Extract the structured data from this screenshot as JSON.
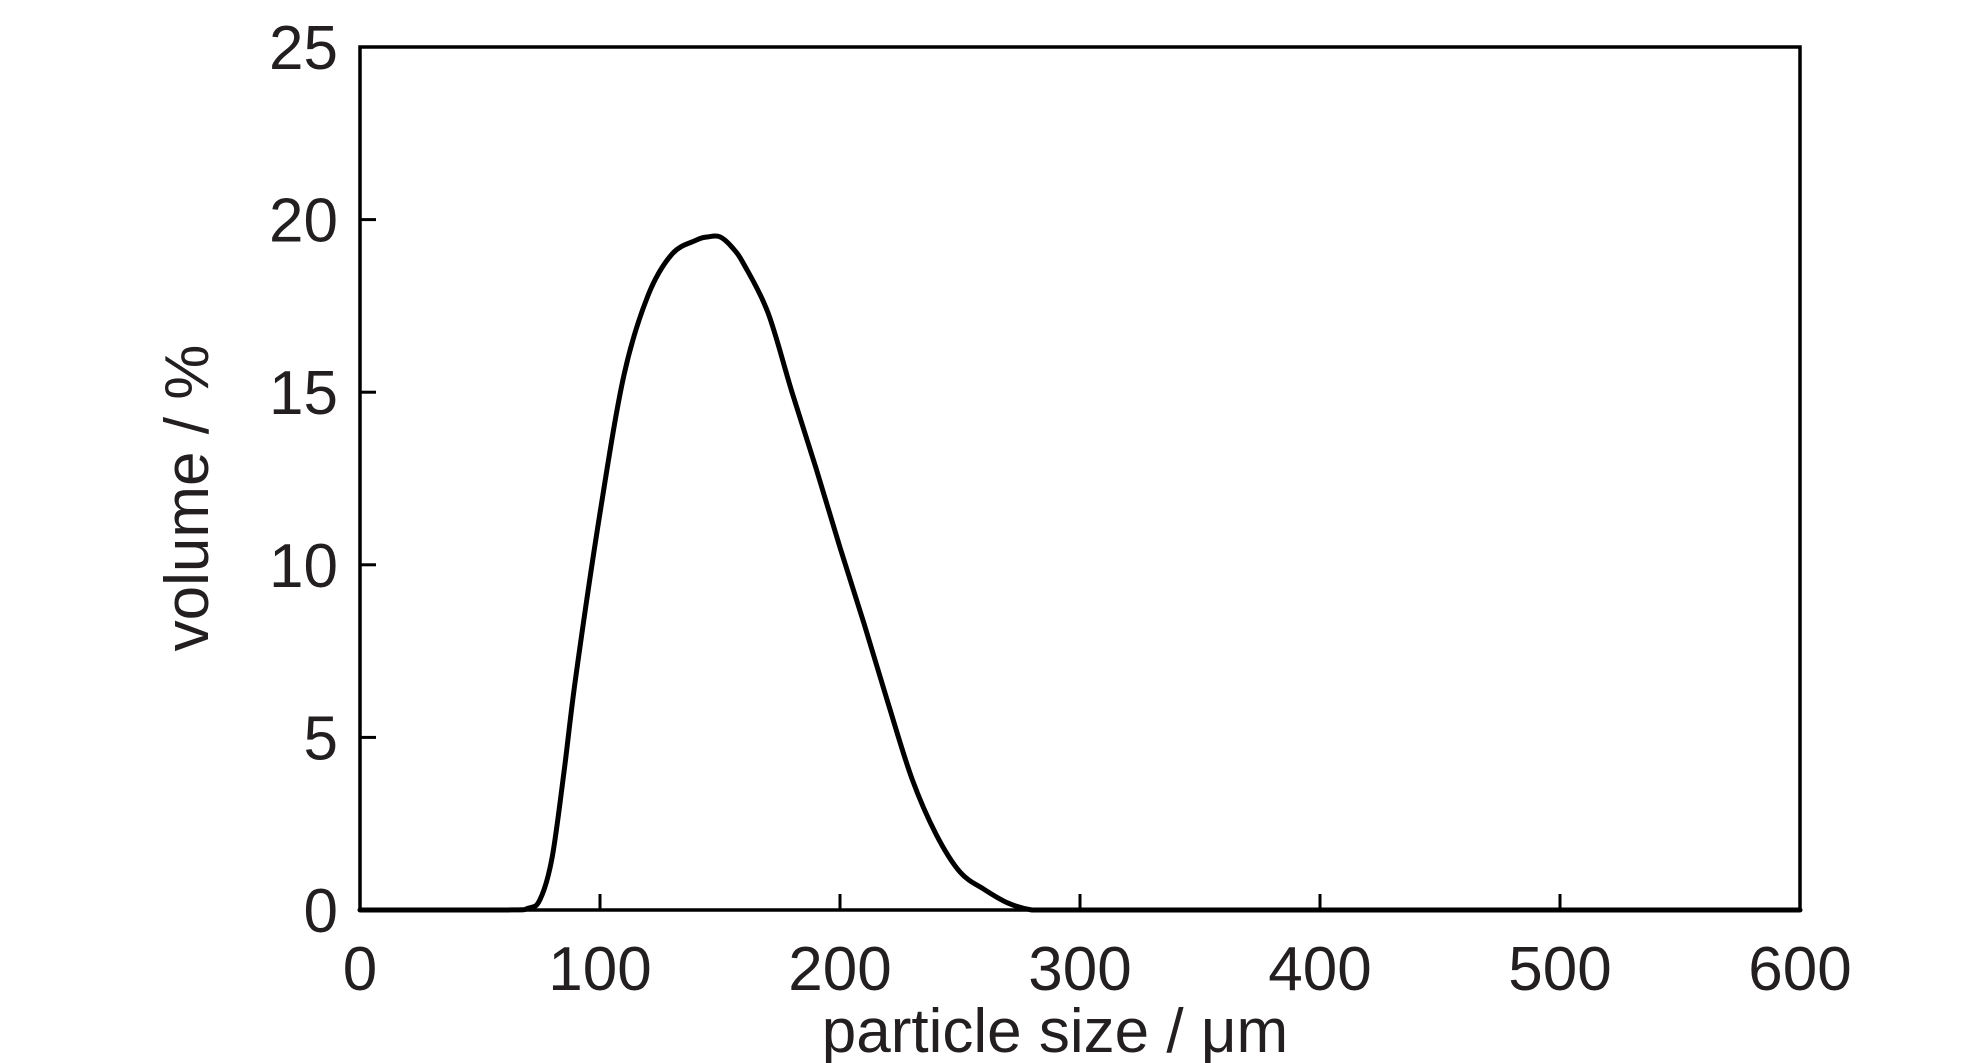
{
  "chart_data": {
    "type": "line",
    "title": "",
    "xlabel": "particle size / μm",
    "ylabel": "volume / %",
    "xlim": [
      0,
      600
    ],
    "ylim": [
      0,
      25
    ],
    "xticks": [
      0,
      100,
      200,
      300,
      400,
      500,
      600
    ],
    "yticks": [
      0,
      5,
      10,
      15,
      20,
      25
    ],
    "grid": false,
    "legend": "none",
    "colors": {
      "line": "#000000",
      "frame": "#000000",
      "text": "#231f20"
    },
    "series": [
      {
        "x": [
          0,
          60,
          70,
          75,
          80,
          85,
          90,
          100,
          110,
          120,
          130,
          140,
          145,
          150,
          155,
          160,
          170,
          180,
          190,
          200,
          210,
          220,
          230,
          240,
          250,
          260,
          270,
          280,
          290,
          300,
          310,
          320,
          330,
          600
        ],
        "y": [
          0,
          0,
          0.05,
          0.3,
          1.5,
          4.0,
          6.8,
          11.5,
          15.5,
          17.8,
          19.0,
          19.4,
          19.5,
          19.5,
          19.2,
          18.7,
          17.3,
          15.0,
          12.8,
          10.5,
          8.3,
          6.0,
          3.8,
          2.2,
          1.1,
          0.6,
          0.2,
          0,
          0,
          0,
          0,
          0,
          0,
          0
        ]
      }
    ]
  }
}
